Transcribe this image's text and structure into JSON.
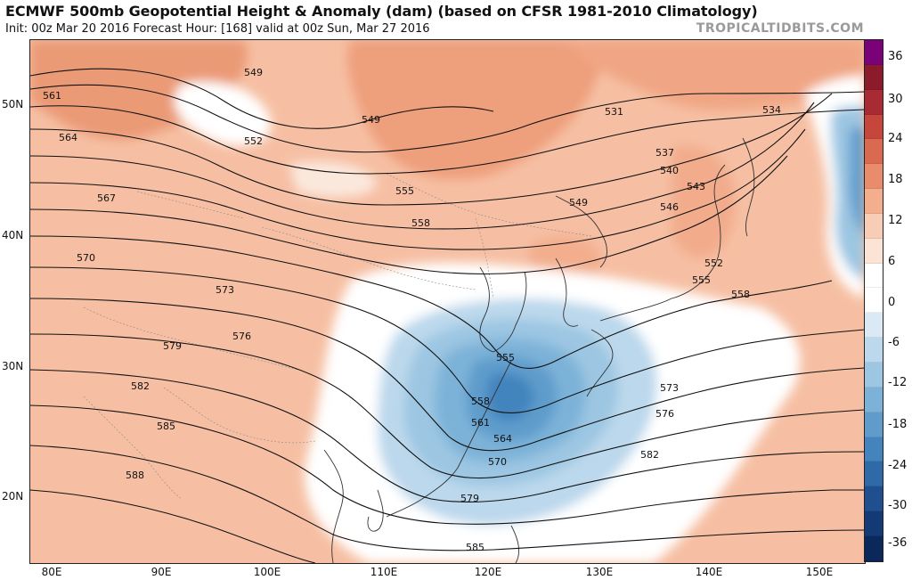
{
  "header": {
    "title": "ECMWF 500mb Geopotential Height & Anomaly (dam) (based on CFSR 1981-2010 Climatology)",
    "subtitle": "Init: 00z Mar 20 2016   Forecast Hour: [168]   valid at 00z Sun, Mar 27 2016",
    "brand": "TROPICALTIDBITS.COM"
  },
  "map": {
    "lat_labels": [
      "50N",
      "40N",
      "30N",
      "20N"
    ],
    "lon_labels": [
      "80E",
      "90E",
      "100E",
      "110E",
      "120E",
      "130E",
      "140E",
      "150E"
    ],
    "contour_labels": [
      "549",
      "561",
      "552",
      "549",
      "531",
      "534",
      "564",
      "537",
      "540",
      "543",
      "555",
      "549",
      "546",
      "567",
      "558",
      "552",
      "570",
      "555",
      "558",
      "573",
      "576",
      "555",
      "579",
      "573",
      "582",
      "576",
      "558",
      "561",
      "564",
      "585",
      "570",
      "582",
      "588",
      "579",
      "585"
    ]
  },
  "colorbar": {
    "ticks": [
      "36",
      "30",
      "24",
      "18",
      "12",
      "6",
      "0",
      "-6",
      "-12",
      "-18",
      "-24",
      "-30",
      "-36"
    ],
    "colors": [
      "#7a0177",
      "#8b1a2b",
      "#a82a32",
      "#c6463c",
      "#d96a4f",
      "#e88c6c",
      "#f3ae8e",
      "#f8cdb6",
      "#fbe3d5",
      "#ffffff",
      "#ffffff",
      "#dbe9f4",
      "#bcd8ec",
      "#9cc6e2",
      "#7db2d8",
      "#5f9ccc",
      "#4384bd",
      "#2e6aa8",
      "#1f4f8e",
      "#133a74",
      "#0b285a"
    ]
  }
}
